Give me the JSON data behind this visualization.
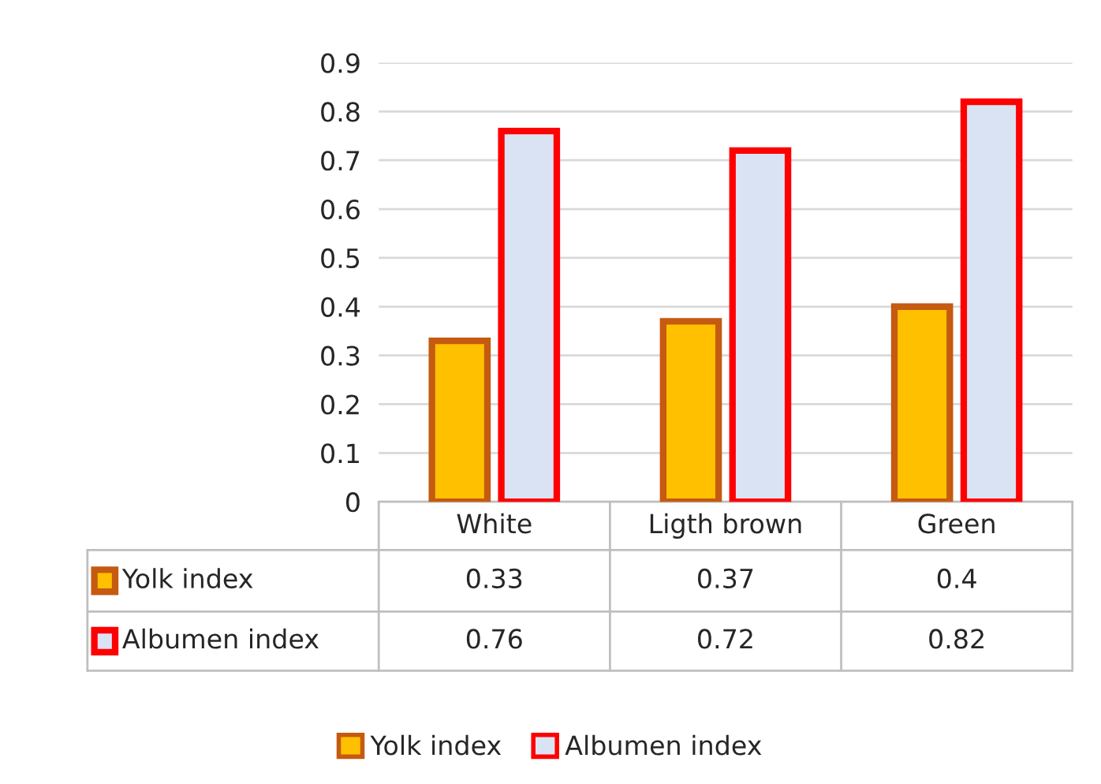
{
  "chart_data": {
    "type": "bar",
    "categories": [
      "White",
      "Ligth brown",
      "Green"
    ],
    "series": [
      {
        "name": "Yolk index",
        "color": "#ffc000",
        "values": [
          0.33,
          0.37,
          0.4
        ]
      },
      {
        "name": "Albumen index",
        "color": "#dae3f3",
        "values": [
          0.76,
          0.72,
          0.82
        ]
      }
    ],
    "ylim": [
      0,
      0.9
    ],
    "yticks": [
      0,
      0.1,
      0.2,
      0.3,
      0.4,
      0.5,
      0.6,
      0.7,
      0.8,
      0.9
    ],
    "grid": "y",
    "legend": "bottom",
    "data_labels": true
  }
}
